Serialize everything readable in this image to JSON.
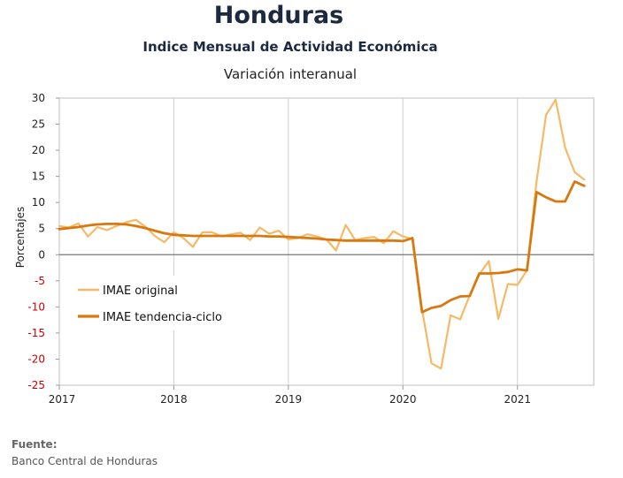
{
  "header": {
    "title": "Honduras",
    "subtitle": "Indice Mensual de  Actividad Económica",
    "subtitle2": "Variación interanual"
  },
  "source": {
    "label": "Fuente:",
    "text": "Banco Central de Honduras"
  },
  "colors": {
    "original": "#f7b966",
    "trend": "#d9780f",
    "negative_tick": "#cc0000",
    "grid": "#d0d0d0",
    "zero_line": "#777777"
  },
  "chart_data": {
    "type": "line",
    "ylabel": "Porcentajes",
    "xlabel": "",
    "ylim": [
      -25,
      30
    ],
    "yticks": [
      30,
      25,
      20,
      15,
      10,
      5,
      0,
      -5,
      -10,
      -15,
      -20,
      -25
    ],
    "xticks": [
      "2017",
      "2018",
      "2019",
      "2020",
      "2021"
    ],
    "grid": "vertical at year boundaries",
    "legend_position": "middle-left",
    "x_start": "2017-01",
    "x_end": "2021-08",
    "frequency": "monthly",
    "series": [
      {
        "name": "IMAE original",
        "values": [
          5.5,
          5.2,
          6.0,
          3.5,
          5.3,
          4.7,
          5.5,
          6.2,
          6.7,
          5.4,
          3.6,
          2.4,
          4.3,
          3.2,
          1.5,
          4.3,
          4.3,
          3.5,
          3.9,
          4.2,
          2.8,
          5.2,
          4.0,
          4.6,
          2.9,
          3.2,
          3.9,
          3.5,
          2.9,
          0.8,
          5.7,
          2.8,
          3.2,
          3.4,
          2.2,
          4.5,
          3.5,
          3.0,
          -10.5,
          -20.8,
          -21.8,
          -11.6,
          -12.4,
          -7.8,
          -3.8,
          -1.2,
          -12.3,
          -5.6,
          -5.8,
          -3.0,
          14.0,
          26.8,
          29.7,
          20.5,
          15.8,
          14.4
        ]
      },
      {
        "name": "IMAE tendencia-ciclo",
        "values": [
          4.9,
          5.1,
          5.3,
          5.6,
          5.8,
          5.9,
          5.9,
          5.8,
          5.5,
          5.1,
          4.6,
          4.1,
          3.8,
          3.7,
          3.6,
          3.6,
          3.6,
          3.6,
          3.6,
          3.6,
          3.6,
          3.6,
          3.5,
          3.5,
          3.4,
          3.3,
          3.2,
          3.1,
          2.9,
          2.8,
          2.7,
          2.7,
          2.7,
          2.7,
          2.7,
          2.7,
          2.6,
          3.2,
          -11.0,
          -10.2,
          -9.8,
          -8.7,
          -8.0,
          -7.9,
          -3.6,
          -3.6,
          -3.5,
          -3.3,
          -2.8,
          -3.0,
          12.0,
          11.0,
          10.2,
          10.2,
          14.0,
          13.2
        ]
      }
    ]
  }
}
